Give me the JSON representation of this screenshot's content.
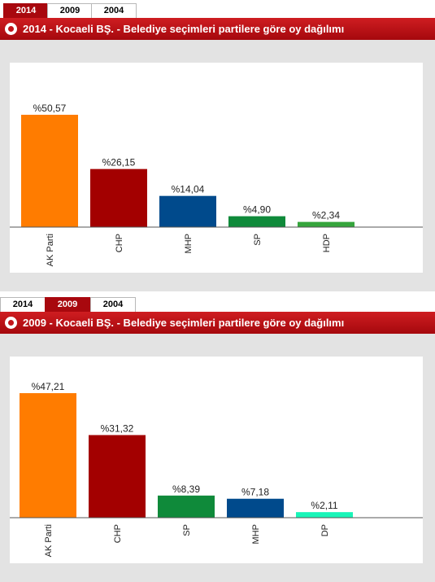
{
  "panels": [
    {
      "tabs": [
        {
          "label": "2014",
          "active": true
        },
        {
          "label": "2009",
          "active": false
        },
        {
          "label": "2004",
          "active": false
        }
      ],
      "title": "2014 - Kocaeli BŞ. - Belediye seçimleri partilere göre oy dağılımı"
    },
    {
      "tabs": [
        {
          "label": "2014",
          "active": false
        },
        {
          "label": "2009",
          "active": true
        },
        {
          "label": "2004",
          "active": false
        }
      ],
      "title": "2009 - Kocaeli BŞ. - Belediye seçimleri partilere göre oy dağılımı"
    }
  ],
  "colors": {
    "header": "#b80e13",
    "plot_background": "#e3e3e3",
    "chart_background": "#ffffff"
  },
  "chart_data": [
    {
      "type": "bar",
      "title": "2014 - Kocaeli BŞ. - Belediye seçimleri partilere göre oy dağılımı",
      "categories": [
        "AK Parti",
        "CHP",
        "MHP",
        "SP",
        "HDP"
      ],
      "values": [
        50.57,
        26.15,
        14.04,
        4.9,
        2.34
      ],
      "data_labels": [
        "%50,57",
        "%26,15",
        "%14,04",
        "%4,90",
        "%2,34"
      ],
      "colors": [
        "#ff7c00",
        "#a30000",
        "#004a8c",
        "#0f8a3a",
        "#35a53c"
      ],
      "xlabel": "",
      "ylabel": "",
      "ylim": [
        0,
        50.57
      ],
      "grid": false,
      "legend": "none"
    },
    {
      "type": "bar",
      "title": "2009 - Kocaeli BŞ. - Belediye seçimleri partilere göre oy dağılımı",
      "categories": [
        "AK Parti",
        "CHP",
        "SP",
        "MHP",
        "DP"
      ],
      "values": [
        47.21,
        31.32,
        8.39,
        7.18,
        2.11
      ],
      "data_labels": [
        "%47,21",
        "%31,32",
        "%8,39",
        "%7,18",
        "%2,11"
      ],
      "colors": [
        "#ff7c00",
        "#a30000",
        "#0f8a3a",
        "#004a8c",
        "#18f5b8"
      ],
      "xlabel": "",
      "ylabel": "",
      "ylim": [
        0,
        47.21
      ],
      "grid": false,
      "legend": "none"
    }
  ]
}
